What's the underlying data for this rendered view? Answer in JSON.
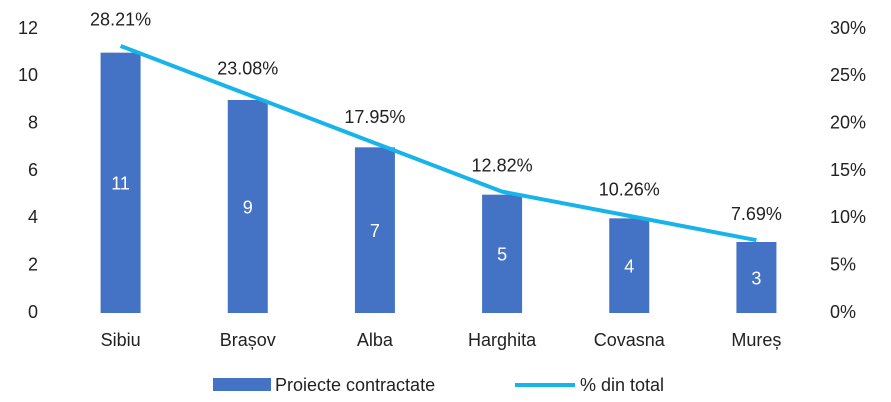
{
  "chart_data": {
    "type": "combo",
    "categories": [
      "Sibiu",
      "Brașov",
      "Alba",
      "Harghita",
      "Covasna",
      "Mureș"
    ],
    "series": [
      {
        "name": "Proiecte contractate",
        "type": "bar",
        "color": "#4472c4",
        "values": [
          11,
          9,
          7,
          5,
          4,
          3
        ]
      },
      {
        "name": "% din total",
        "type": "line",
        "axis": "y2",
        "color": "#17b4e9",
        "values": [
          28.21,
          23.08,
          17.95,
          12.82,
          10.26,
          7.69
        ],
        "value_labels": [
          "28.21%",
          "23.08%",
          "17.95%",
          "12.82%",
          "10.26%",
          "7.69%"
        ]
      }
    ],
    "ylim": [
      0,
      12
    ],
    "yticks": [
      0,
      2,
      4,
      6,
      8,
      10,
      12
    ],
    "y2lim": [
      0,
      30
    ],
    "y2ticks": [
      {
        "value": 0,
        "label": "0%"
      },
      {
        "value": 5,
        "label": "5%"
      },
      {
        "value": 10,
        "label": "10%"
      },
      {
        "value": 15,
        "label": "15%"
      },
      {
        "value": 20,
        "label": "20%"
      },
      {
        "value": 25,
        "label": "25%"
      },
      {
        "value": 30,
        "label": "30%"
      }
    ],
    "legend": "bottom"
  }
}
